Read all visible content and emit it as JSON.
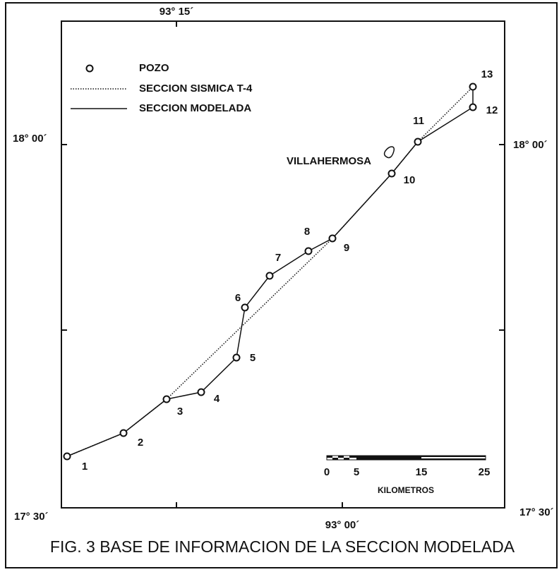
{
  "map": {
    "coordinates": {
      "top": "93° 15´",
      "bottom": "93° 00´",
      "left_upper": "18° 00´",
      "right_upper": "18° 00´",
      "left_lower": "17° 30´",
      "right_lower": "17° 30´"
    },
    "legend": [
      "POZO",
      "SECCION SISMICA T-4",
      "SECCION MODELADA"
    ],
    "wells": [
      "1",
      "2",
      "3",
      "4",
      "5",
      "6",
      "7",
      "8",
      "9",
      "10",
      "11",
      "12",
      "13"
    ],
    "city": "VILLAHERMOSA",
    "scale": {
      "ticks": [
        "0",
        "5",
        "15",
        "25"
      ],
      "unit": "KILOMETROS"
    },
    "caption": "FIG. 3   BASE DE INFORMACION DE LA SECCION MODELADA"
  }
}
